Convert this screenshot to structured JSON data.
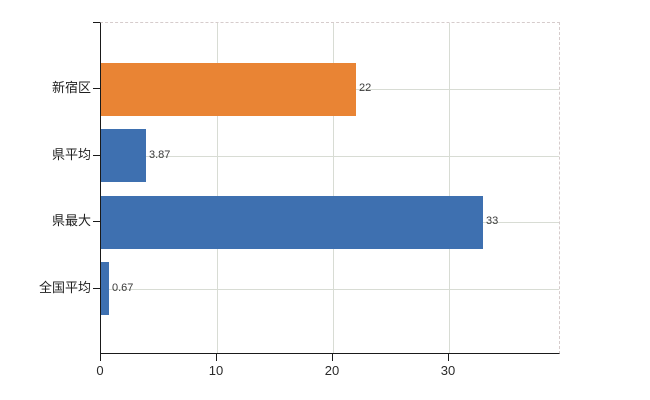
{
  "chart_data": {
    "type": "bar",
    "orientation": "horizontal",
    "title": "",
    "xlabel": "",
    "ylabel": "",
    "categories": [
      "新宿区",
      "県平均",
      "県最大",
      "全国平均"
    ],
    "values": [
      22,
      3.87,
      33,
      0.67
    ],
    "data_labels": [
      "22",
      "3.87",
      "33",
      "0.67"
    ],
    "series": [
      {
        "name": "highlighted-region",
        "color": "#e98434",
        "applies_to": [
          "新宿区"
        ]
      },
      {
        "name": "reference-values",
        "color": "#3e70b0",
        "applies_to": [
          "県平均",
          "県最大",
          "全国平均"
        ]
      }
    ],
    "bar_colors": [
      "#e98434",
      "#3e70b0",
      "#3e70b0",
      "#3e70b0"
    ],
    "x_ticks": [
      0,
      10,
      20,
      30
    ],
    "x_tick_labels": [
      "0",
      "10",
      "20",
      "30"
    ],
    "xlim": [
      0,
      39.7
    ],
    "grid": true,
    "legend": "none",
    "colors": {
      "axis": "#1a1a1a",
      "gridline": "#d8dcd4",
      "plot_border": "#d6cccc",
      "label_text": "#3a3a3a"
    }
  }
}
